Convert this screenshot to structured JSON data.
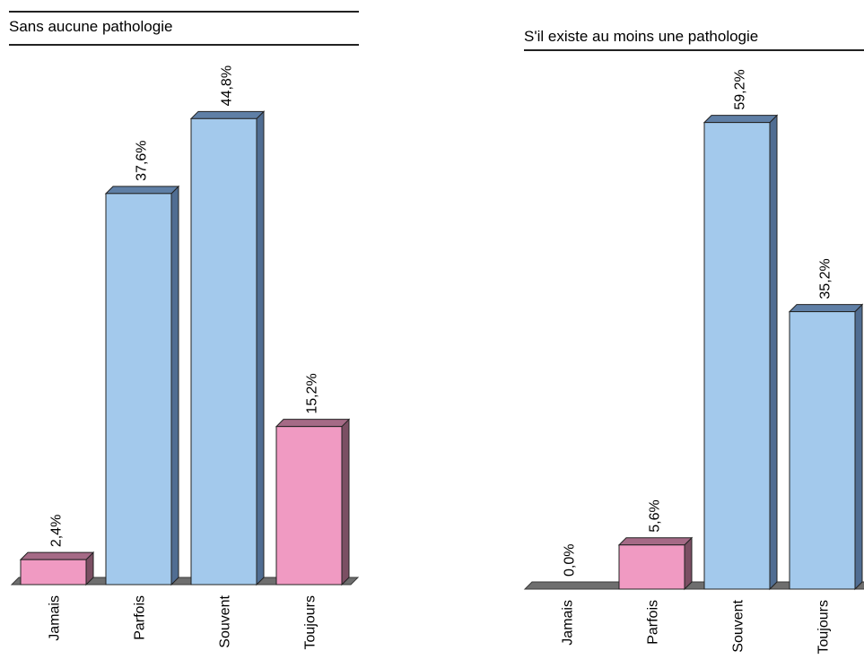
{
  "chart_data": [
    {
      "type": "bar",
      "title": "Sans aucune pathologie",
      "categories": [
        "Jamais",
        "Parfois",
        "Souvent",
        "Toujours"
      ],
      "values": [
        2.4,
        37.6,
        44.8,
        15.2
      ],
      "value_labels": [
        "2,4%",
        "37,6%",
        "44,8%",
        "15,2%"
      ],
      "bar_colors": [
        "#f09ac2",
        "#a3c9ec",
        "#a3c9ec",
        "#f09ac2"
      ],
      "top_colors": [
        "#a56a86",
        "#5f7fa6",
        "#5f7fa6",
        "#a56a86"
      ],
      "side_colors": [
        "#7b4f63",
        "#506d92",
        "#506d92",
        "#7b4f63"
      ],
      "grid": false,
      "legend": "none"
    },
    {
      "type": "bar",
      "title": "S'il existe au moins une pathologie",
      "categories": [
        "Jamais",
        "Parfois",
        "Souvent",
        "Toujours"
      ],
      "values": [
        0.0,
        5.6,
        59.2,
        35.2
      ],
      "value_labels": [
        "0,0%",
        "5,6%",
        "59,2%",
        "35,2%"
      ],
      "bar_colors": [
        "#a3c9ec",
        "#f09ac2",
        "#a3c9ec",
        "#a3c9ec"
      ],
      "top_colors": [
        "#5f7fa6",
        "#a56a86",
        "#5f7fa6",
        "#5f7fa6"
      ],
      "side_colors": [
        "#506d92",
        "#7b4f63",
        "#506d92",
        "#506d92"
      ],
      "grid": false,
      "legend": "none"
    }
  ]
}
